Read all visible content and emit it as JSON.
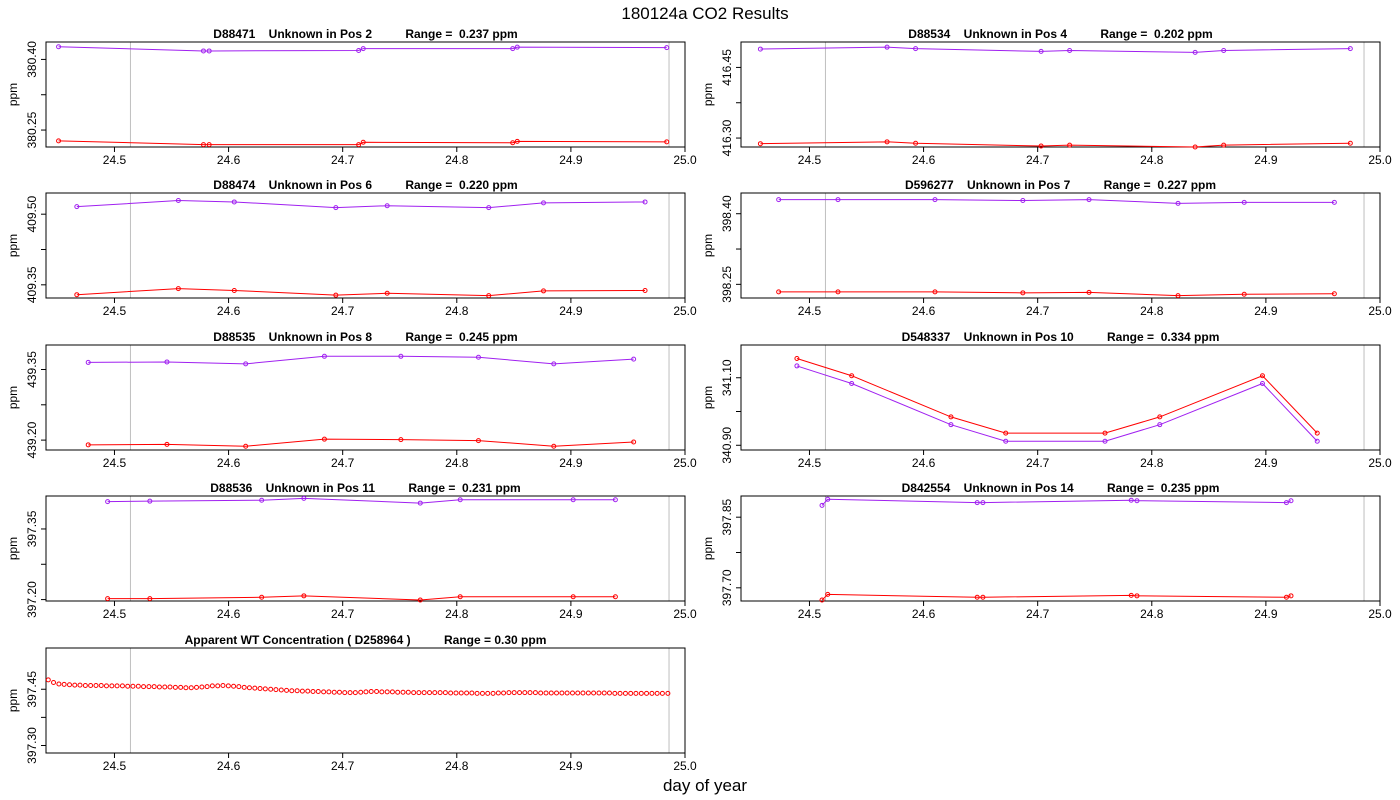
{
  "figure": {
    "title": "180124a  CO2 Results",
    "xlabel": "day of year"
  },
  "colors": {
    "purple": "#a020f0",
    "red": "#ff0000",
    "grid": "#bebebe",
    "axis": "#000000"
  },
  "chart_data": [
    {
      "type": "line",
      "title": "D88471    Unknown in Pos 2          Range =  0.237 ppm",
      "ylabel": "ppm",
      "xlim": [
        24.44,
        25.0
      ],
      "ylim": [
        380.214,
        380.437
      ],
      "xticks": [
        "24.5",
        "24.6",
        "24.7",
        "24.8",
        "24.9",
        "25.0"
      ],
      "yticks": [
        "380.25",
        "380.40"
      ],
      "vlines": [
        24.514,
        24.986
      ],
      "series": [
        {
          "name": "upper",
          "color": "purple",
          "x": [
            24.451,
            24.578,
            24.583,
            24.714,
            24.718,
            24.849,
            24.853,
            24.984
          ],
          "y": [
            380.427,
            380.418,
            380.418,
            380.419,
            380.423,
            380.423,
            380.426,
            380.425
          ]
        },
        {
          "name": "lower",
          "color": "red",
          "x": [
            24.451,
            24.578,
            24.583,
            24.714,
            24.718,
            24.849,
            24.853,
            24.984
          ],
          "y": [
            380.227,
            380.219,
            380.219,
            380.219,
            380.224,
            380.223,
            380.226,
            380.225
          ]
        }
      ]
    },
    {
      "type": "line",
      "title": "D88534    Unknown in Pos 4          Range =  0.202 ppm",
      "ylabel": "ppm",
      "xlim": [
        24.44,
        25.0
      ],
      "ylim": [
        416.281,
        416.504
      ],
      "xticks": [
        "24.5",
        "24.6",
        "24.7",
        "24.8",
        "24.9",
        "25.0"
      ],
      "yticks": [
        "416.30",
        "416.45"
      ],
      "vlines": [
        24.514,
        24.986
      ],
      "series": [
        {
          "name": "upper",
          "color": "purple",
          "x": [
            24.457,
            24.568,
            24.593,
            24.703,
            24.728,
            24.838,
            24.863,
            24.974
          ],
          "y": [
            416.489,
            416.493,
            416.49,
            416.484,
            416.486,
            416.482,
            416.486,
            416.49
          ]
        },
        {
          "name": "lower",
          "color": "red",
          "x": [
            24.457,
            24.568,
            24.593,
            24.703,
            24.728,
            24.838,
            24.863,
            24.974
          ],
          "y": [
            416.288,
            416.292,
            416.289,
            416.283,
            416.285,
            416.281,
            416.285,
            416.289
          ]
        }
      ]
    },
    {
      "type": "line",
      "title": "D88474    Unknown in Pos 6          Range =  0.220 ppm",
      "ylabel": "ppm",
      "xlim": [
        24.44,
        25.0
      ],
      "ylim": [
        409.322,
        409.545
      ],
      "xticks": [
        "24.5",
        "24.6",
        "24.7",
        "24.8",
        "24.9",
        "25.0"
      ],
      "yticks": [
        "409.35",
        "409.50"
      ],
      "vlines": [
        24.514,
        24.986
      ],
      "series": [
        {
          "name": "upper",
          "color": "purple",
          "x": [
            24.467,
            24.556,
            24.605,
            24.694,
            24.739,
            24.828,
            24.876,
            24.965
          ],
          "y": [
            409.516,
            409.529,
            409.526,
            409.514,
            409.518,
            409.514,
            409.524,
            409.526
          ]
        },
        {
          "name": "lower",
          "color": "red",
          "x": [
            24.467,
            24.556,
            24.605,
            24.694,
            24.739,
            24.828,
            24.876,
            24.965
          ],
          "y": [
            409.329,
            409.342,
            409.338,
            409.328,
            409.332,
            409.327,
            409.337,
            409.338
          ]
        }
      ]
    },
    {
      "type": "line",
      "title": "D596277    Unknown in Pos 7          Range =  0.227 ppm",
      "ylabel": "ppm",
      "xlim": [
        24.44,
        25.0
      ],
      "ylim": [
        398.221,
        398.444
      ],
      "xticks": [
        "24.5",
        "24.6",
        "24.7",
        "24.8",
        "24.9",
        "25.0"
      ],
      "yticks": [
        "398.25",
        "398.40"
      ],
      "vlines": [
        24.514,
        24.986
      ],
      "series": [
        {
          "name": "upper",
          "color": "purple",
          "x": [
            24.473,
            24.525,
            24.61,
            24.687,
            24.745,
            24.823,
            24.881,
            24.96
          ],
          "y": [
            398.43,
            398.43,
            398.43,
            398.428,
            398.43,
            398.422,
            398.424,
            398.424
          ]
        },
        {
          "name": "lower",
          "color": "red",
          "x": [
            24.473,
            24.525,
            24.61,
            24.687,
            24.745,
            24.823,
            24.881,
            24.96
          ],
          "y": [
            398.234,
            398.234,
            398.234,
            398.232,
            398.233,
            398.226,
            398.229,
            398.23
          ]
        }
      ]
    },
    {
      "type": "line",
      "title": "D88535    Unknown in Pos 8          Range =  0.245 ppm",
      "ylabel": "ppm",
      "xlim": [
        24.44,
        25.0
      ],
      "ylim": [
        439.179,
        439.402
      ],
      "xticks": [
        "24.5",
        "24.6",
        "24.7",
        "24.8",
        "24.9",
        "25.0"
      ],
      "yticks": [
        "439.20",
        "439.35"
      ],
      "vlines": [
        24.514,
        24.986
      ],
      "series": [
        {
          "name": "upper",
          "color": "purple",
          "x": [
            24.477,
            24.546,
            24.615,
            24.684,
            24.751,
            24.819,
            24.885,
            24.955
          ],
          "y": [
            439.365,
            439.366,
            439.362,
            439.378,
            439.378,
            439.376,
            439.362,
            439.372
          ]
        },
        {
          "name": "lower",
          "color": "red",
          "x": [
            24.477,
            24.546,
            24.615,
            24.684,
            24.751,
            24.819,
            24.885,
            24.955
          ],
          "y": [
            439.19,
            439.191,
            439.187,
            439.202,
            439.201,
            439.199,
            439.187,
            439.196
          ]
        }
      ]
    },
    {
      "type": "line",
      "title": "D548337    Unknown in Pos 10          Range =  0.334 ppm",
      "ylabel": "ppm",
      "xlim": [
        24.44,
        25.0
      ],
      "ylim": [
        340.886,
        341.197
      ],
      "xticks": [
        "24.5",
        "24.6",
        "24.7",
        "24.8",
        "24.9",
        "25.0"
      ],
      "yticks": [
        "340.90",
        "341.10"
      ],
      "vlines": [
        24.514,
        24.986
      ],
      "series": [
        {
          "name": "upper",
          "color": "purple",
          "x": [
            24.489,
            24.537,
            24.624,
            24.672,
            24.759,
            24.807,
            24.897,
            24.945
          ],
          "y": [
            341.135,
            341.083,
            340.961,
            340.912,
            340.912,
            340.961,
            341.083,
            340.912
          ]
        },
        {
          "name": "lower",
          "color": "red",
          "x": [
            24.489,
            24.537,
            24.624,
            24.672,
            24.759,
            24.807,
            24.897,
            24.945
          ],
          "y": [
            341.157,
            341.106,
            340.984,
            340.936,
            340.936,
            340.984,
            341.106,
            340.936
          ]
        }
      ]
    },
    {
      "type": "line",
      "title": "D88536    Unknown in Pos 11          Range =  0.231 ppm",
      "ylabel": "ppm",
      "xlim": [
        24.44,
        25.0
      ],
      "ylim": [
        397.197,
        397.42
      ],
      "xticks": [
        "24.5",
        "24.6",
        "24.7",
        "24.8",
        "24.9",
        "25.0"
      ],
      "yticks": [
        "397.20",
        "397.35"
      ],
      "vlines": [
        24.514,
        24.986
      ],
      "series": [
        {
          "name": "upper",
          "color": "purple",
          "x": [
            24.494,
            24.531,
            24.629,
            24.666,
            24.768,
            24.803,
            24.902,
            24.939
          ],
          "y": [
            397.408,
            397.409,
            397.411,
            397.415,
            397.405,
            397.412,
            397.412,
            397.412
          ]
        },
        {
          "name": "lower",
          "color": "red",
          "x": [
            24.494,
            24.531,
            24.629,
            24.666,
            24.768,
            24.803,
            24.902,
            24.939
          ],
          "y": [
            397.202,
            397.202,
            397.205,
            397.208,
            397.199,
            397.206,
            397.206,
            397.206
          ]
        }
      ]
    },
    {
      "type": "line",
      "title": "D842554    Unknown in Pos 14          Range =  0.235 ppm",
      "ylabel": "ppm",
      "xlim": [
        24.44,
        25.0
      ],
      "ylim": [
        397.672,
        397.895
      ],
      "xticks": [
        "24.5",
        "24.6",
        "24.7",
        "24.8",
        "24.9",
        "25.0"
      ],
      "yticks": [
        "397.70",
        "397.85"
      ],
      "vlines": [
        24.514,
        24.986
      ],
      "series": [
        {
          "name": "upper",
          "color": "purple",
          "x": [
            24.511,
            24.516,
            24.647,
            24.652,
            24.782,
            24.787,
            24.918,
            24.922
          ],
          "y": [
            397.875,
            397.888,
            397.881,
            397.881,
            397.886,
            397.885,
            397.881,
            397.885
          ]
        },
        {
          "name": "lower",
          "color": "red",
          "x": [
            24.511,
            24.516,
            24.647,
            24.652,
            24.782,
            24.787,
            24.918,
            24.922
          ],
          "y": [
            397.674,
            397.686,
            397.68,
            397.68,
            397.684,
            397.683,
            397.68,
            397.683
          ]
        }
      ]
    },
    {
      "type": "scatter",
      "title": "Apparent WT Concentration ( D258964 )          Range = 0.30 ppm",
      "ylabel": "ppm",
      "xlim": [
        24.44,
        25.0
      ],
      "ylim": [
        397.28,
        397.56
      ],
      "xticks": [
        "24.5",
        "24.6",
        "24.7",
        "24.8",
        "24.9",
        "25.0"
      ],
      "yticks": [
        "397.30",
        "397.45"
      ],
      "vlines": [
        24.514,
        24.986
      ],
      "series": [
        {
          "name": "WT",
          "color": "red",
          "x": [
            24.442,
            24.4466,
            24.4513,
            24.4559,
            24.4606,
            24.4652,
            24.4698,
            24.4745,
            24.4791,
            24.4838,
            24.4884,
            24.493,
            24.4977,
            24.5023,
            24.507,
            24.5116,
            24.5162,
            24.5209,
            24.5255,
            24.5302,
            24.5348,
            24.5394,
            24.5441,
            24.5487,
            24.5534,
            24.558,
            24.5626,
            24.5673,
            24.5719,
            24.5766,
            24.5812,
            24.5858,
            24.5905,
            24.5951,
            24.5998,
            24.6044,
            24.609,
            24.6137,
            24.6183,
            24.623,
            24.6276,
            24.6322,
            24.6369,
            24.6415,
            24.6462,
            24.6508,
            24.6554,
            24.6601,
            24.6647,
            24.6694,
            24.674,
            24.6786,
            24.6833,
            24.6879,
            24.6926,
            24.6972,
            24.7018,
            24.7065,
            24.7111,
            24.7158,
            24.7204,
            24.725,
            24.7297,
            24.7343,
            24.739,
            24.7436,
            24.7482,
            24.7529,
            24.7575,
            24.7622,
            24.7668,
            24.7714,
            24.7761,
            24.7807,
            24.7854,
            24.79,
            24.7946,
            24.7993,
            24.8039,
            24.8086,
            24.8132,
            24.8178,
            24.8225,
            24.8271,
            24.8318,
            24.8364,
            24.841,
            24.8457,
            24.8503,
            24.855,
            24.8596,
            24.8642,
            24.8689,
            24.8735,
            24.8782,
            24.8828,
            24.8874,
            24.8921,
            24.8967,
            24.9014,
            24.906,
            24.9106,
            24.9153,
            24.9199,
            24.9246,
            24.9292,
            24.9338,
            24.9385,
            24.9431,
            24.9478,
            24.9524,
            24.957,
            24.9617,
            24.9663,
            24.971,
            24.9756,
            24.9802,
            24.985
          ],
          "y": [
            397.475,
            397.468,
            397.464,
            397.463,
            397.462,
            397.461,
            397.461,
            397.46,
            397.46,
            397.46,
            397.46,
            397.459,
            397.459,
            397.459,
            397.459,
            397.458,
            397.458,
            397.458,
            397.457,
            397.457,
            397.457,
            397.456,
            397.456,
            397.456,
            397.455,
            397.455,
            397.454,
            397.454,
            397.455,
            397.456,
            397.457,
            397.459,
            397.459,
            397.46,
            397.459,
            397.458,
            397.457,
            397.455,
            397.454,
            397.453,
            397.452,
            397.451,
            397.45,
            397.449,
            397.448,
            397.447,
            397.446,
            397.446,
            397.445,
            397.445,
            397.444,
            397.444,
            397.443,
            397.443,
            397.442,
            397.442,
            397.441,
            397.441,
            397.441,
            397.442,
            397.443,
            397.444,
            397.444,
            397.443,
            397.443,
            397.443,
            397.442,
            397.442,
            397.442,
            397.441,
            397.441,
            397.441,
            397.441,
            397.441,
            397.441,
            397.441,
            397.44,
            397.44,
            397.44,
            397.44,
            397.44,
            397.439,
            397.439,
            397.439,
            397.439,
            397.44,
            397.44,
            397.441,
            397.441,
            397.441,
            397.441,
            397.441,
            397.441,
            397.44,
            397.44,
            397.44,
            397.44,
            397.44,
            397.44,
            397.44,
            397.44,
            397.44,
            397.44,
            397.44,
            397.44,
            397.44,
            397.44,
            397.439,
            397.439,
            397.439,
            397.439,
            397.439,
            397.439,
            397.439,
            397.439,
            397.439,
            397.439,
            397.439
          ]
        }
      ]
    }
  ]
}
